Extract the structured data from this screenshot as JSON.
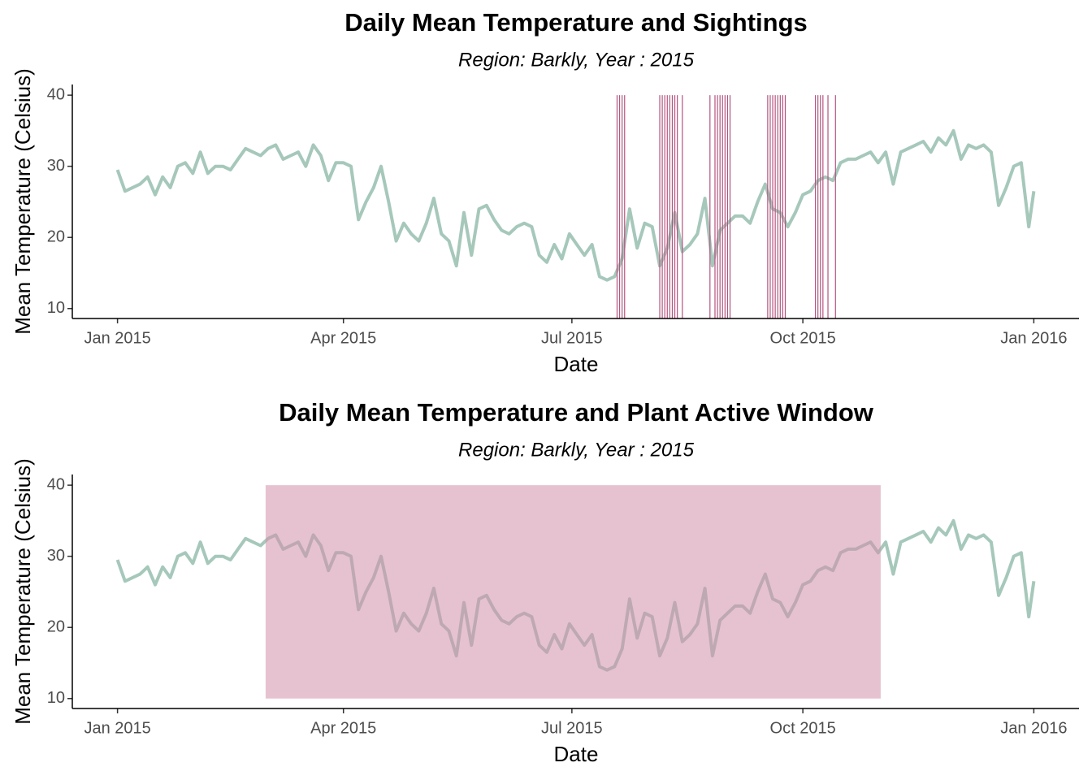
{
  "chart_data": [
    {
      "type": "line",
      "title": "Daily Mean Temperature and Sightings",
      "subtitle": "Region: Barkly, Year : 2015",
      "xlabel": "Date",
      "ylabel": "Mean Temperature (Celsius)",
      "x": [
        0,
        3,
        6,
        9,
        12,
        15,
        18,
        21,
        24,
        27,
        30,
        33,
        36,
        39,
        42,
        45,
        48,
        51,
        54,
        57,
        60,
        63,
        66,
        69,
        72,
        75,
        78,
        81,
        84,
        87,
        90,
        93,
        96,
        99,
        102,
        105,
        108,
        111,
        114,
        117,
        120,
        123,
        126,
        129,
        132,
        135,
        138,
        141,
        144,
        147,
        150,
        153,
        156,
        159,
        162,
        165,
        168,
        171,
        174,
        177,
        180,
        183,
        186,
        189,
        192,
        195,
        198,
        201,
        204,
        207,
        210,
        213,
        216,
        219,
        222,
        225,
        228,
        231,
        234,
        237,
        240,
        243,
        246,
        249,
        252,
        255,
        258,
        261,
        264,
        267,
        270,
        273,
        276,
        279,
        282,
        285,
        288,
        291,
        294,
        297,
        300,
        303,
        306,
        309,
        312,
        315,
        318,
        321,
        324,
        327,
        330,
        333,
        336,
        339,
        342,
        345,
        348,
        351,
        354,
        357,
        360,
        363,
        365
      ],
      "values": [
        29.5,
        26.5,
        27,
        27.5,
        28.5,
        26,
        28.5,
        27,
        30,
        30.5,
        29,
        32,
        29,
        30,
        30,
        29.5,
        31,
        32.5,
        32,
        31.5,
        32.5,
        33,
        31,
        31.5,
        32,
        30,
        33,
        31.5,
        28,
        30.5,
        30.5,
        30,
        22.5,
        25,
        27,
        30,
        25,
        19.5,
        22,
        20.5,
        19.5,
        22,
        25.5,
        20.5,
        19.5,
        16,
        23.5,
        17.5,
        24,
        24.5,
        22.5,
        21,
        20.5,
        21.5,
        22,
        21.5,
        17.5,
        16.5,
        19,
        17,
        20.5,
        19,
        17.5,
        19,
        14.5,
        14,
        14.5,
        17,
        24,
        18.5,
        22,
        21.5,
        16,
        18.5,
        23.5,
        18,
        19,
        20.5,
        25.5,
        16,
        21,
        22,
        23,
        23,
        22,
        25,
        27.5,
        24,
        23.5,
        21.5,
        23.5,
        26,
        26.5,
        28,
        28.5,
        28,
        30.5,
        31,
        31,
        31.5,
        32,
        30.5,
        32,
        27.5,
        32,
        32.5,
        33,
        33.5,
        32,
        34,
        33,
        35,
        31,
        33,
        32.5,
        33,
        32,
        24.5,
        27,
        30,
        30.5,
        21.5,
        26.5
      ],
      "color": "#a6c8bb",
      "sightings": [
        199,
        200,
        201,
        202,
        216,
        217,
        218,
        219,
        220,
        221,
        222,
        223,
        225,
        236,
        238,
        239,
        240,
        241,
        242,
        243,
        244,
        259,
        260,
        261,
        262,
        263,
        264,
        265,
        266,
        278,
        279,
        280,
        281,
        283,
        286
      ],
      "sightings_ymax": 40,
      "sightings_color": "#b5547f",
      "xlim": [
        -18,
        383
      ],
      "ylim": [
        8.6,
        41.5
      ],
      "xticks": [
        {
          "value": 0,
          "label": "Jan 2015"
        },
        {
          "value": 90,
          "label": "Apr 2015"
        },
        {
          "value": 181,
          "label": "Jul 2015"
        },
        {
          "value": 273,
          "label": "Oct 2015"
        },
        {
          "value": 365,
          "label": "Jan 2016"
        }
      ],
      "yticks": [
        10,
        20,
        30,
        40
      ]
    },
    {
      "type": "line",
      "title": "Daily Mean Temperature and Plant Active Window",
      "subtitle": "Region: Barkly, Year : 2015",
      "xlabel": "Date",
      "ylabel": "Mean Temperature (Celsius)",
      "x": [
        0,
        3,
        6,
        9,
        12,
        15,
        18,
        21,
        24,
        27,
        30,
        33,
        36,
        39,
        42,
        45,
        48,
        51,
        54,
        57,
        60,
        63,
        66,
        69,
        72,
        75,
        78,
        81,
        84,
        87,
        90,
        93,
        96,
        99,
        102,
        105,
        108,
        111,
        114,
        117,
        120,
        123,
        126,
        129,
        132,
        135,
        138,
        141,
        144,
        147,
        150,
        153,
        156,
        159,
        162,
        165,
        168,
        171,
        174,
        177,
        180,
        183,
        186,
        189,
        192,
        195,
        198,
        201,
        204,
        207,
        210,
        213,
        216,
        219,
        222,
        225,
        228,
        231,
        234,
        237,
        240,
        243,
        246,
        249,
        252,
        255,
        258,
        261,
        264,
        267,
        270,
        273,
        276,
        279,
        282,
        285,
        288,
        291,
        294,
        297,
        300,
        303,
        306,
        309,
        312,
        315,
        318,
        321,
        324,
        327,
        330,
        333,
        336,
        339,
        342,
        345,
        348,
        351,
        354,
        357,
        360,
        363,
        365
      ],
      "values": [
        29.5,
        26.5,
        27,
        27.5,
        28.5,
        26,
        28.5,
        27,
        30,
        30.5,
        29,
        32,
        29,
        30,
        30,
        29.5,
        31,
        32.5,
        32,
        31.5,
        32.5,
        33,
        31,
        31.5,
        32,
        30,
        33,
        31.5,
        28,
        30.5,
        30.5,
        30,
        22.5,
        25,
        27,
        30,
        25,
        19.5,
        22,
        20.5,
        19.5,
        22,
        25.5,
        20.5,
        19.5,
        16,
        23.5,
        17.5,
        24,
        24.5,
        22.5,
        21,
        20.5,
        21.5,
        22,
        21.5,
        17.5,
        16.5,
        19,
        17,
        20.5,
        19,
        17.5,
        19,
        14.5,
        14,
        14.5,
        17,
        24,
        18.5,
        22,
        21.5,
        16,
        18.5,
        23.5,
        18,
        19,
        20.5,
        25.5,
        16,
        21,
        22,
        23,
        23,
        22,
        25,
        27.5,
        24,
        23.5,
        21.5,
        23.5,
        26,
        26.5,
        28,
        28.5,
        28,
        30.5,
        31,
        31,
        31.5,
        32,
        30.5,
        32,
        27.5,
        32,
        32.5,
        33,
        33.5,
        32,
        34,
        33,
        35,
        31,
        33,
        32.5,
        33,
        32,
        24.5,
        27,
        30,
        30.5,
        21.5,
        26.5
      ],
      "color": "#a6c8bb",
      "window": {
        "xmin": 59,
        "xmax": 304,
        "ymin": 10,
        "ymax": 40,
        "color": "#d18fac"
      },
      "xlim": [
        -18,
        383
      ],
      "ylim": [
        8.6,
        41.5
      ],
      "xticks": [
        {
          "value": 0,
          "label": "Jan 2015"
        },
        {
          "value": 90,
          "label": "Apr 2015"
        },
        {
          "value": 181,
          "label": "Jul 2015"
        },
        {
          "value": 273,
          "label": "Oct 2015"
        },
        {
          "value": 365,
          "label": "Jan 2016"
        }
      ],
      "yticks": [
        10,
        20,
        30,
        40
      ]
    }
  ]
}
